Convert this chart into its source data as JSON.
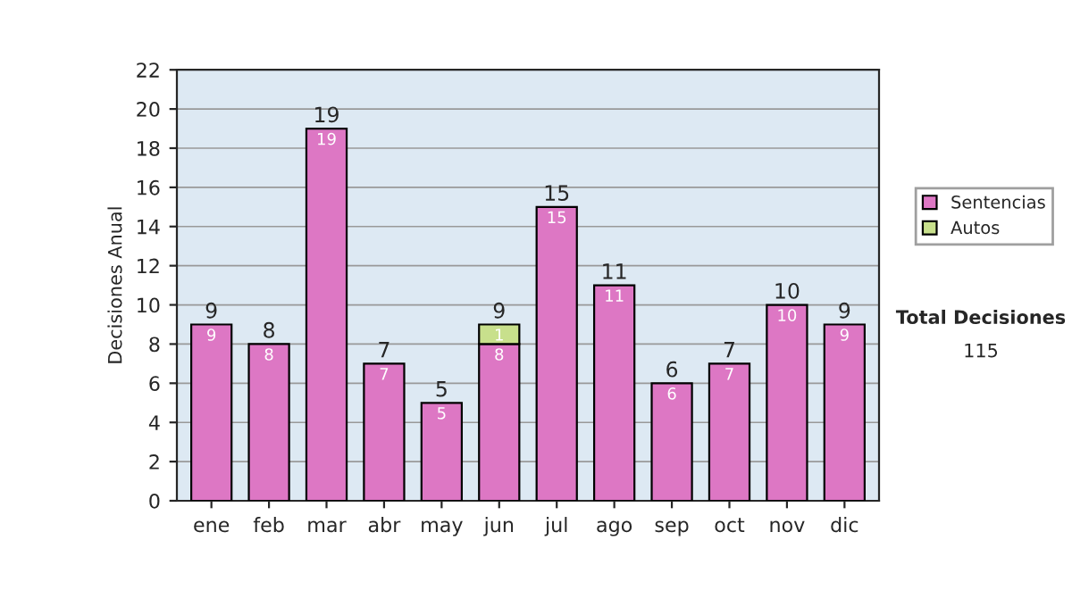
{
  "chart_data": {
    "type": "bar",
    "stacked": true,
    "ylabel": "Decisiones Anual",
    "categories": [
      "ene",
      "feb",
      "mar",
      "abr",
      "may",
      "jun",
      "jul",
      "ago",
      "sep",
      "oct",
      "nov",
      "dic"
    ],
    "series": [
      {
        "name": "Sentencias",
        "color": "#dd77c4",
        "values": [
          9,
          8,
          19,
          7,
          5,
          8,
          15,
          11,
          6,
          7,
          10,
          9
        ],
        "value_labels": [
          "9",
          "8",
          "19",
          "7",
          "5",
          "8",
          "15",
          "11",
          "6",
          "7",
          "10",
          "9"
        ]
      },
      {
        "name": "Autos",
        "color": "#c8e08c",
        "values": [
          null,
          null,
          null,
          null,
          null,
          1,
          null,
          null,
          null,
          null,
          null,
          null
        ],
        "value_labels": [
          null,
          null,
          null,
          null,
          null,
          "1",
          null,
          null,
          null,
          null,
          null,
          null
        ]
      }
    ],
    "totals": [
      "9",
      "8",
      "19",
      "7",
      "5",
      "9",
      "15",
      "11",
      "6",
      "7",
      "10",
      "9"
    ],
    "ylim": [
      0,
      22
    ],
    "yticks": [
      0,
      2,
      4,
      6,
      8,
      10,
      12,
      14,
      16,
      18,
      20,
      22
    ],
    "grid": "y",
    "legend": "right",
    "annotations": [
      "Total Decisiones",
      "115"
    ]
  }
}
